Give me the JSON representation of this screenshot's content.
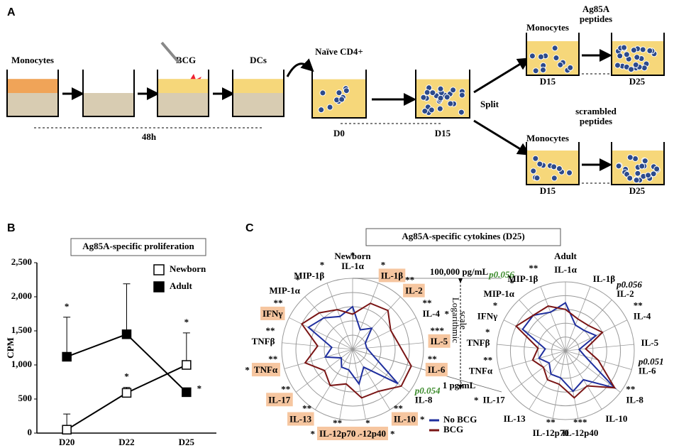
{
  "panel_a": {
    "label": "A",
    "monocytes": "Monocytes",
    "bcg": "BCG",
    "dcs": "DCs",
    "naive": "Naïve CD4+",
    "duration": "48h",
    "d0": "D0",
    "d15": "D15",
    "split": "Split",
    "upper": {
      "monocytes": "Monocytes",
      "peptides": [
        "Ag85A",
        "peptides"
      ],
      "start": "D15",
      "end": "D25"
    },
    "lower": {
      "monocytes": "Monocytes",
      "peptides": [
        "scrambled",
        "peptides"
      ],
      "start": "D15",
      "end": "D25"
    }
  },
  "panel_c": {
    "label": "C",
    "title": "Ag85A-specific cytokines (D25)"
  },
  "chart_data": [
    {
      "type": "line",
      "panel_label": "B",
      "title": "Ag85A-specific proliferation",
      "ylabel": "CPM",
      "categories": [
        "D20",
        "D22",
        "D25"
      ],
      "series": [
        {
          "name": "Newborn",
          "color": "#000000",
          "filled": false,
          "values": [
            50,
            590,
            1000
          ],
          "errors": [
            230,
            80,
            470
          ],
          "marks": [
            null,
            "*",
            "*"
          ]
        },
        {
          "name": "Adult",
          "color": "#000000",
          "filled": true,
          "values": [
            1120,
            1450,
            600
          ],
          "errors": [
            580,
            740,
            null
          ],
          "marks": [
            "*",
            null,
            "*"
          ]
        }
      ],
      "ylim": [
        0,
        2500
      ],
      "yticks": [
        0,
        500,
        {
          "value": 1000,
          "label": "1,000"
        },
        {
          "value": 1500,
          "label": "1,500"
        },
        {
          "value": 2000,
          "label": "2,000"
        },
        {
          "value": 2500,
          "label": "2,500"
        }
      ],
      "legend": "upper right"
    },
    {
      "type": "radar",
      "title": "Newborn",
      "categories": [
        "IL-1α",
        "IL-1β",
        "IL-2",
        "IL-4",
        "IL-5",
        "IL-6",
        "IL-8",
        "IL-10",
        "IL-12p40",
        "IL-12p70",
        "IL-13",
        "IL-17",
        "TNFα",
        "TNFβ",
        "IFNγ",
        "MIP-1α",
        "MIP-1β"
      ],
      "series": [
        {
          "name": "No BCG",
          "color": "#1f2f9e",
          "values": [
            1000,
            30,
            100,
            10,
            10,
            30,
            10000,
            30,
            300,
            30,
            30,
            10,
            100,
            30,
            3000,
            1000,
            300
          ]
        },
        {
          "name": "BCG",
          "color": "#7a1515",
          "values": [
            300,
            3000,
            5000,
            1000,
            2000,
            20000,
            20000,
            3000,
            3000,
            300,
            1000,
            300,
            3000,
            300,
            10000,
            3000,
            1000
          ]
        }
      ],
      "stars": [
        "*",
        "*",
        "**",
        "**",
        "***",
        "**",
        null,
        "**",
        "*",
        "**",
        "**",
        "**",
        "**",
        "**",
        "**",
        "*",
        "*"
      ],
      "green_stars": [
        null,
        null,
        null,
        "*",
        null,
        null,
        null,
        "*",
        "*",
        "*",
        null,
        null,
        "*",
        null,
        null,
        null,
        null
      ],
      "notes": [
        null,
        null,
        null,
        null,
        null,
        null,
        {
          "text": "p0.054",
          "color": "#3a8a2a"
        },
        null,
        null,
        null,
        null,
        null,
        null,
        null,
        null,
        null,
        null
      ],
      "highlighted": [
        false,
        true,
        true,
        false,
        true,
        true,
        false,
        true,
        true,
        true,
        true,
        true,
        true,
        false,
        true,
        false,
        false
      ],
      "log_scale": true,
      "rlim": [
        1,
        100000
      ],
      "rticks": [
        {
          "value": 1,
          "label": "1 pg/mL"
        },
        10,
        100,
        1000,
        10000,
        {
          "value": 100000,
          "label": "100,000 pg/mL"
        }
      ],
      "scale_note": [
        "Logarithmic",
        "scale"
      ],
      "legend": "lower right"
    },
    {
      "type": "radar",
      "title": "Adult",
      "categories": [
        "IL-1α",
        "IL-1β",
        "IL-2",
        "IL-4",
        "IL-5",
        "IL-6",
        "IL-8",
        "IL-10",
        "IL-12p40",
        "IL-12p70",
        "IL-13",
        "IL-17",
        "TNFα",
        "TNFβ",
        "IFNγ",
        "MIP-1α",
        "MIP-1β"
      ],
      "series": [
        {
          "color": "#1f2f9e",
          "values": [
            3000,
            100,
            100,
            300,
            10,
            30,
            30000,
            300,
            1000,
            100,
            100,
            30,
            100,
            30,
            3000,
            3000,
            1000
          ]
        },
        {
          "color": "#7a1515",
          "values": [
            1000,
            300,
            300,
            1000,
            30,
            300,
            30000,
            1000,
            3000,
            300,
            300,
            100,
            300,
            100,
            10000,
            3000,
            3000
          ]
        }
      ],
      "stars": [
        null,
        null,
        null,
        "**",
        null,
        null,
        "**",
        null,
        "***",
        "**",
        null,
        null,
        "**",
        "*",
        "*",
        "*",
        "**"
      ],
      "green_stars": [
        null,
        null,
        null,
        null,
        null,
        null,
        null,
        null,
        null,
        null,
        null,
        "*",
        null,
        null,
        null,
        null,
        null
      ],
      "notes": [
        null,
        null,
        {
          "text": "p0.056",
          "color": "#000000"
        },
        null,
        null,
        {
          "text": "p0.051",
          "color": "#000000"
        },
        null,
        null,
        null,
        null,
        null,
        null,
        null,
        null,
        null,
        {
          "text": "p0.056",
          "color": "#3a8a2a"
        },
        null
      ],
      "highlighted": [
        false,
        false,
        false,
        false,
        false,
        false,
        false,
        false,
        false,
        false,
        false,
        false,
        false,
        false,
        false,
        false,
        false
      ],
      "log_scale": true,
      "rlim": [
        1,
        100000
      ],
      "rticks": [
        1,
        10,
        100,
        1000,
        10000,
        100000
      ]
    }
  ]
}
